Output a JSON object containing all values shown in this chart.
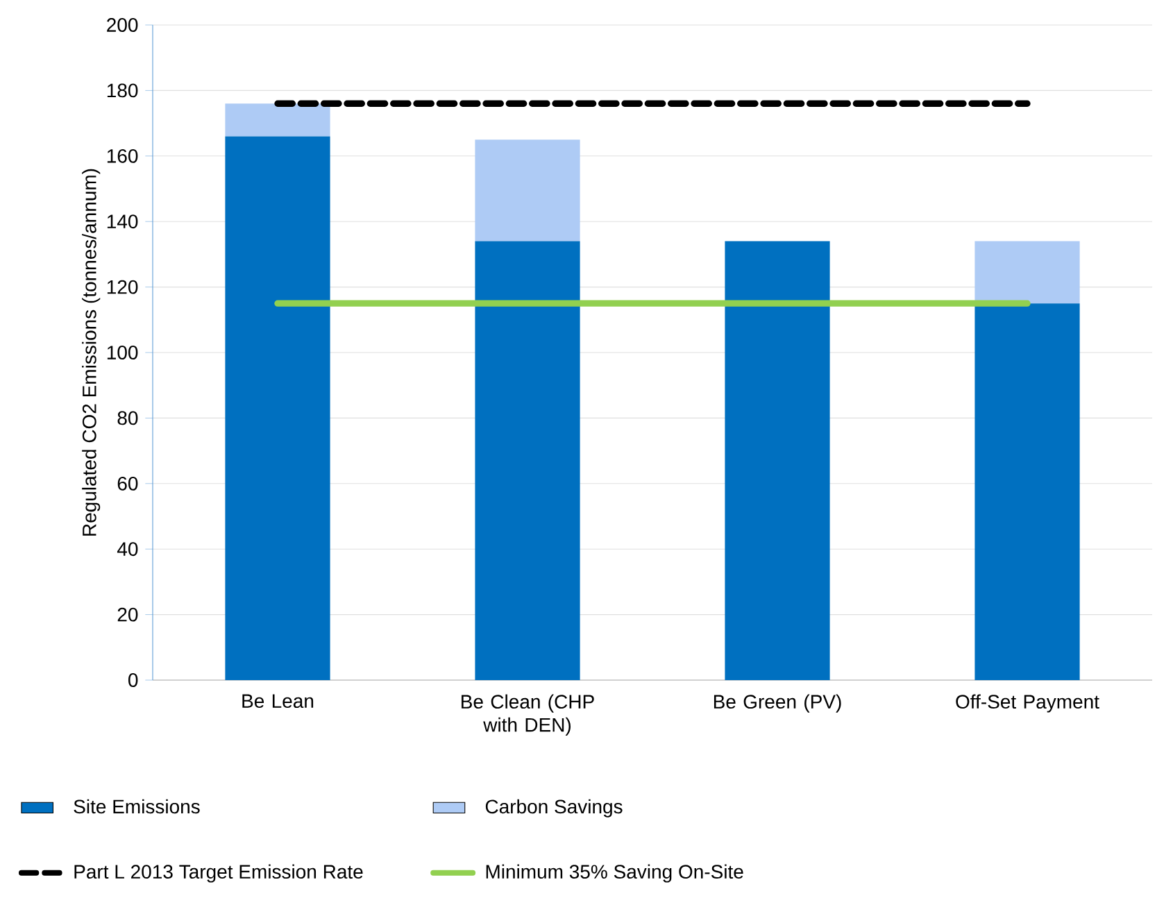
{
  "chart_data": {
    "type": "bar",
    "stacked": true,
    "ylabel": "Regulated CO2 Emissions (tonnes/annum)",
    "categories": [
      "Be Lean",
      "Be Clean (CHP with DEN)",
      "Be Green (PV)",
      "Off-Set Payment"
    ],
    "series": [
      {
        "name": "Site Emissions",
        "color": "#0070c0",
        "values": [
          166,
          134,
          134,
          115
        ]
      },
      {
        "name": "Carbon Savings",
        "color": "#aecbf5",
        "values": [
          10,
          31,
          0,
          19
        ]
      },
      {
        "name": "Part L 2013 Target Emission Rate",
        "type": "line",
        "line_style": "dashed",
        "color": "#000000",
        "values": [
          176,
          176,
          176,
          176
        ]
      },
      {
        "name": "Minimum 35% Saving On-Site",
        "type": "line",
        "line_style": "solid",
        "color": "#92d050",
        "values": [
          115,
          115,
          115,
          115
        ]
      }
    ],
    "ylim": [
      0,
      200
    ],
    "yticks": [
      0,
      20,
      40,
      60,
      80,
      100,
      120,
      140,
      160,
      180,
      200
    ],
    "grid": "y",
    "legend": "bottom",
    "marker": "none"
  }
}
